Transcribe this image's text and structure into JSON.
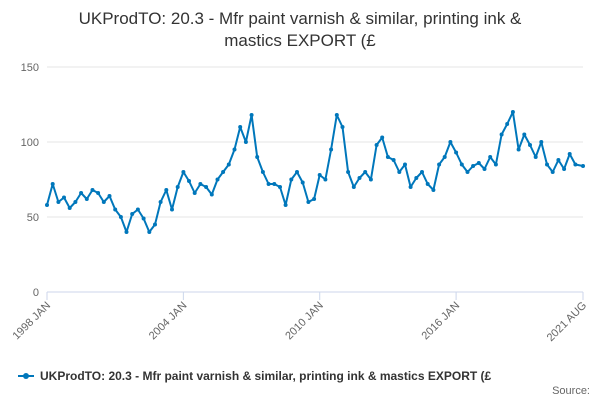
{
  "chart_data": {
    "type": "line",
    "title_lines": [
      "UKProdTO: 20.3 - Mfr paint varnish & similar, printing ink &",
      "mastics EXPORT (£"
    ],
    "xlabel": "",
    "ylabel": "",
    "y_ticks": [
      "0",
      "50",
      "100",
      "150"
    ],
    "ylim": [
      0,
      150
    ],
    "x_ticks": [
      {
        "label": "1998 JAN",
        "date": "1998-01"
      },
      {
        "label": "2004 JAN",
        "date": "2004-01"
      },
      {
        "label": "2010 JAN",
        "date": "2010-01"
      },
      {
        "label": "2016 JAN",
        "date": "2016-01"
      },
      {
        "label": "2021 AUG",
        "date": "2021-08"
      }
    ],
    "grid": "horizontal",
    "legend_position": "bottom",
    "series_color": "#0077bb",
    "series": [
      {
        "name": "UKProdTO: 20.3 - Mfr paint varnish & similar, printing ink & mastics EXPORT (£",
        "points": [
          [
            "1998-01",
            58
          ],
          [
            "1998-04",
            72
          ],
          [
            "1998-07",
            60
          ],
          [
            "1998-10",
            63
          ],
          [
            "1999-01",
            56
          ],
          [
            "1999-04",
            60
          ],
          [
            "1999-07",
            66
          ],
          [
            "1999-10",
            62
          ],
          [
            "2000-01",
            68
          ],
          [
            "2000-04",
            66
          ],
          [
            "2000-07",
            60
          ],
          [
            "2000-10",
            64
          ],
          [
            "2001-01",
            55
          ],
          [
            "2001-04",
            50
          ],
          [
            "2001-07",
            40
          ],
          [
            "2001-10",
            52
          ],
          [
            "2002-01",
            55
          ],
          [
            "2002-04",
            49
          ],
          [
            "2002-07",
            40
          ],
          [
            "2002-10",
            45
          ],
          [
            "2003-01",
            60
          ],
          [
            "2003-04",
            68
          ],
          [
            "2003-07",
            55
          ],
          [
            "2003-10",
            70
          ],
          [
            "2004-01",
            80
          ],
          [
            "2004-04",
            74
          ],
          [
            "2004-07",
            66
          ],
          [
            "2004-10",
            72
          ],
          [
            "2005-01",
            70
          ],
          [
            "2005-04",
            65
          ],
          [
            "2005-07",
            75
          ],
          [
            "2005-10",
            80
          ],
          [
            "2006-01",
            85
          ],
          [
            "2006-04",
            95
          ],
          [
            "2006-07",
            110
          ],
          [
            "2006-10",
            100
          ],
          [
            "2007-01",
            118
          ],
          [
            "2007-04",
            90
          ],
          [
            "2007-07",
            80
          ],
          [
            "2007-10",
            72
          ],
          [
            "2008-01",
            72
          ],
          [
            "2008-04",
            70
          ],
          [
            "2008-07",
            58
          ],
          [
            "2008-10",
            75
          ],
          [
            "2009-01",
            80
          ],
          [
            "2009-04",
            73
          ],
          [
            "2009-07",
            60
          ],
          [
            "2009-10",
            62
          ],
          [
            "2010-01",
            78
          ],
          [
            "2010-04",
            75
          ],
          [
            "2010-07",
            95
          ],
          [
            "2010-10",
            118
          ],
          [
            "2011-01",
            110
          ],
          [
            "2011-04",
            80
          ],
          [
            "2011-07",
            70
          ],
          [
            "2011-10",
            76
          ],
          [
            "2012-01",
            80
          ],
          [
            "2012-04",
            75
          ],
          [
            "2012-07",
            98
          ],
          [
            "2012-10",
            103
          ],
          [
            "2013-01",
            90
          ],
          [
            "2013-04",
            88
          ],
          [
            "2013-07",
            80
          ],
          [
            "2013-10",
            85
          ],
          [
            "2014-01",
            70
          ],
          [
            "2014-04",
            76
          ],
          [
            "2014-07",
            80
          ],
          [
            "2014-10",
            72
          ],
          [
            "2015-01",
            68
          ],
          [
            "2015-04",
            85
          ],
          [
            "2015-07",
            90
          ],
          [
            "2015-10",
            100
          ],
          [
            "2016-01",
            93
          ],
          [
            "2016-04",
            85
          ],
          [
            "2016-07",
            80
          ],
          [
            "2016-10",
            84
          ],
          [
            "2017-01",
            86
          ],
          [
            "2017-04",
            82
          ],
          [
            "2017-07",
            90
          ],
          [
            "2017-10",
            85
          ],
          [
            "2018-01",
            105
          ],
          [
            "2018-04",
            112
          ],
          [
            "2018-07",
            120
          ],
          [
            "2018-10",
            95
          ],
          [
            "2019-01",
            105
          ],
          [
            "2019-04",
            98
          ],
          [
            "2019-07",
            90
          ],
          [
            "2019-10",
            100
          ],
          [
            "2020-01",
            85
          ],
          [
            "2020-04",
            80
          ],
          [
            "2020-07",
            88
          ],
          [
            "2020-10",
            82
          ],
          [
            "2021-01",
            92
          ],
          [
            "2021-04",
            85
          ],
          [
            "2021-08",
            84
          ]
        ]
      }
    ]
  },
  "legend": {
    "label": "UKProdTO: 20.3 - Mfr paint varnish & similar, printing ink & mastics EXPORT (£"
  },
  "credits": {
    "source_label": "Source:"
  }
}
